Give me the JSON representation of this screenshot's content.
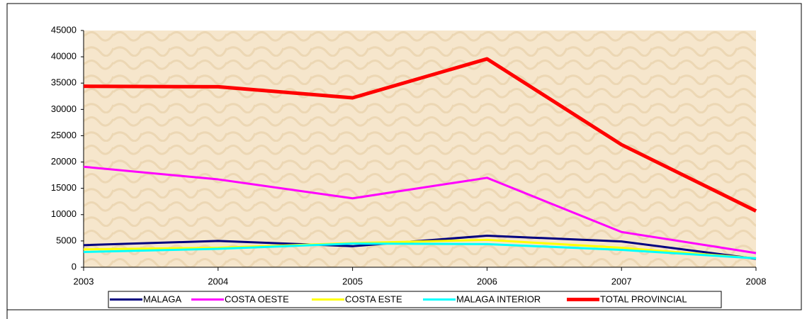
{
  "chart_data": {
    "type": "line",
    "x": [
      2003,
      2004,
      2005,
      2006,
      2007,
      2008
    ],
    "xlim": [
      2003,
      2008
    ],
    "xticks": [
      2003,
      2004,
      2005,
      2006,
      2007,
      2008
    ],
    "ylim": [
      0,
      45000
    ],
    "yticks": [
      0,
      5000,
      10000,
      15000,
      20000,
      25000,
      30000,
      35000,
      40000,
      45000
    ],
    "series": [
      {
        "name": "MALAGA",
        "color": "#000080",
        "values": [
          4200,
          5000,
          4000,
          6000,
          4900,
          1600
        ]
      },
      {
        "name": "COSTA OESTE",
        "color": "#ff00ff",
        "values": [
          19100,
          16700,
          13100,
          17000,
          6700,
          2700
        ]
      },
      {
        "name": "COSTA ESTE",
        "color": "#ffff00",
        "values": [
          3400,
          3700,
          4600,
          5200,
          3700,
          1700
        ]
      },
      {
        "name": "MALAGA INTERIOR",
        "color": "#00ffff",
        "values": [
          2900,
          3500,
          4500,
          4400,
          3300,
          1700
        ]
      },
      {
        "name": "TOTAL PROVINCIAL",
        "color": "#ff0000",
        "values": [
          34400,
          34300,
          32200,
          39600,
          23300,
          10700
        ]
      }
    ],
    "legend": "bottom"
  }
}
